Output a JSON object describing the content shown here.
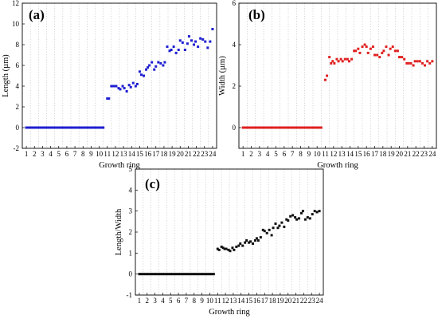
{
  "chart_data": [
    {
      "panel": "(a)",
      "type": "scatter",
      "xlabel": "Growth ring",
      "ylabel": "Length (µm)",
      "xlim": [
        0.5,
        24.5
      ],
      "ylim": [
        -2,
        12
      ],
      "xticks": [
        "1",
        "2",
        "3",
        "4",
        "5",
        "6",
        "7",
        "8",
        "9",
        "10",
        "11",
        "12",
        "13",
        "14",
        "15",
        "16",
        "17",
        "18",
        "19",
        "20",
        "21",
        "22",
        "23",
        "24"
      ],
      "yticks": [
        "-2",
        "0",
        "2",
        "4",
        "6",
        "8",
        "10",
        "12"
      ],
      "grid": "vertical dotted",
      "color": "#1f1fd1",
      "x": [
        1.0,
        1.25,
        1.5,
        1.75,
        2.0,
        2.25,
        2.5,
        2.75,
        3.0,
        3.25,
        3.5,
        3.75,
        4.0,
        4.25,
        4.5,
        4.75,
        5.0,
        5.25,
        5.5,
        5.75,
        6.0,
        6.25,
        6.5,
        6.75,
        7.0,
        7.25,
        7.5,
        7.75,
        8.0,
        8.25,
        8.5,
        8.75,
        9.0,
        9.25,
        9.5,
        9.75,
        10.0,
        10.25,
        10.5,
        11.0,
        11.2,
        11.5,
        11.7,
        11.9,
        12.1,
        12.4,
        12.6,
        12.9,
        13.1,
        13.4,
        13.7,
        13.9,
        14.2,
        14.5,
        14.7,
        15.0,
        15.2,
        15.5,
        15.8,
        16.0,
        16.2,
        16.5,
        16.8,
        17.0,
        17.3,
        17.6,
        17.9,
        18.1,
        18.4,
        18.7,
        18.9,
        19.2,
        19.5,
        19.8,
        20.0,
        20.3,
        20.6,
        20.9,
        21.1,
        21.4,
        21.7,
        21.9,
        22.2,
        22.5,
        22.8,
        23.1,
        23.4,
        23.7,
        24.0
      ],
      "y": [
        0,
        0,
        0,
        0,
        0,
        0,
        0,
        0,
        0,
        0,
        0,
        0,
        0,
        0,
        0,
        0,
        0,
        0,
        0,
        0,
        0,
        0,
        0,
        0,
        0,
        0,
        0,
        0,
        0,
        0,
        0,
        0,
        0,
        0,
        0,
        0,
        0,
        0,
        0,
        2.8,
        2.8,
        4.0,
        4.0,
        4.0,
        4.0,
        3.8,
        3.7,
        4.0,
        3.8,
        3.5,
        4.1,
        3.9,
        4.3,
        4.0,
        4.2,
        5.4,
        5.1,
        5.0,
        5.6,
        5.8,
        6.0,
        6.3,
        5.6,
        5.9,
        6.3,
        6.2,
        6.0,
        6.3,
        7.8,
        7.4,
        7.5,
        7.8,
        7.2,
        7.5,
        8.4,
        8.2,
        7.5,
        8.1,
        8.8,
        8.4,
        8.0,
        8.3,
        7.8,
        8.6,
        8.5,
        8.3,
        7.7,
        8.3,
        9.5
      ]
    },
    {
      "panel": "(b)",
      "type": "scatter",
      "xlabel": "Growth ring",
      "ylabel": "Width (µm)",
      "xlim": [
        0.5,
        24.5
      ],
      "ylim": [
        -1,
        6
      ],
      "xticks": [
        "1",
        "2",
        "3",
        "4",
        "5",
        "6",
        "7",
        "8",
        "9",
        "10",
        "11",
        "12",
        "13",
        "14",
        "15",
        "16",
        "17",
        "18",
        "19",
        "20",
        "21",
        "22",
        "23",
        "24"
      ],
      "yticks": [
        "0",
        "2",
        "4",
        "6"
      ],
      "grid": "vertical dotted",
      "color": "#e02020",
      "x": [
        1.0,
        1.25,
        1.5,
        1.75,
        2.0,
        2.25,
        2.5,
        2.75,
        3.0,
        3.25,
        3.5,
        3.75,
        4.0,
        4.25,
        4.5,
        4.75,
        5.0,
        5.25,
        5.5,
        5.75,
        6.0,
        6.25,
        6.5,
        6.75,
        7.0,
        7.25,
        7.5,
        7.75,
        8.0,
        8.25,
        8.5,
        8.75,
        9.0,
        9.25,
        9.5,
        9.75,
        10.0,
        10.25,
        10.5,
        11.0,
        11.2,
        11.5,
        11.7,
        11.9,
        12.1,
        12.4,
        12.6,
        12.9,
        13.1,
        13.4,
        13.7,
        13.9,
        14.2,
        14.5,
        14.7,
        15.0,
        15.2,
        15.5,
        15.8,
        16.0,
        16.2,
        16.5,
        16.8,
        17.0,
        17.3,
        17.6,
        17.9,
        18.1,
        18.4,
        18.7,
        18.9,
        19.2,
        19.5,
        19.8,
        20.0,
        20.3,
        20.6,
        20.9,
        21.1,
        21.4,
        21.7,
        21.9,
        22.2,
        22.5,
        22.8,
        23.1,
        23.4,
        23.7,
        24.0
      ],
      "y": [
        0,
        0,
        0,
        0,
        0,
        0,
        0,
        0,
        0,
        0,
        0,
        0,
        0,
        0,
        0,
        0,
        0,
        0,
        0,
        0,
        0,
        0,
        0,
        0,
        0,
        0,
        0,
        0,
        0,
        0,
        0,
        0,
        0,
        0,
        0,
        0,
        0,
        0,
        0,
        2.3,
        2.5,
        3.4,
        3.1,
        3.2,
        3.1,
        3.3,
        3.2,
        3.3,
        3.2,
        3.3,
        3.3,
        3.2,
        3.3,
        3.7,
        3.7,
        3.8,
        3.6,
        3.9,
        4.0,
        3.9,
        3.6,
        3.8,
        3.9,
        3.5,
        3.5,
        3.4,
        3.6,
        3.7,
        3.9,
        3.5,
        3.8,
        3.9,
        3.7,
        3.7,
        3.4,
        3.4,
        3.3,
        3.1,
        3.1,
        3.1,
        3.0,
        3.2,
        3.2,
        3.2,
        3.1,
        3.0,
        3.2,
        3.1,
        3.2
      ]
    },
    {
      "panel": "(c)",
      "type": "scatter",
      "xlabel": "Growth ring",
      "ylabel": "Length/Width",
      "xlim": [
        0.5,
        24.5
      ],
      "ylim": [
        -1,
        5
      ],
      "xticks": [
        "1",
        "2",
        "3",
        "4",
        "5",
        "6",
        "7",
        "8",
        "9",
        "10",
        "11",
        "12",
        "13",
        "14",
        "15",
        "16",
        "17",
        "18",
        "19",
        "20",
        "21",
        "22",
        "23",
        "24"
      ],
      "yticks": [
        "-1",
        "0",
        "1",
        "2",
        "3",
        "4",
        "5"
      ],
      "grid": "vertical dotted",
      "color": "#111111",
      "x": [
        1.0,
        1.25,
        1.5,
        1.75,
        2.0,
        2.25,
        2.5,
        2.75,
        3.0,
        3.25,
        3.5,
        3.75,
        4.0,
        4.25,
        4.5,
        4.75,
        5.0,
        5.25,
        5.5,
        5.75,
        6.0,
        6.25,
        6.5,
        6.75,
        7.0,
        7.25,
        7.5,
        7.75,
        8.0,
        8.25,
        8.5,
        8.75,
        9.0,
        9.25,
        9.5,
        9.75,
        10.0,
        10.25,
        10.5,
        11.0,
        11.2,
        11.5,
        11.7,
        11.9,
        12.1,
        12.4,
        12.6,
        12.9,
        13.1,
        13.4,
        13.7,
        13.9,
        14.2,
        14.5,
        14.7,
        15.0,
        15.2,
        15.5,
        15.8,
        16.0,
        16.2,
        16.5,
        16.8,
        17.0,
        17.3,
        17.6,
        17.9,
        18.1,
        18.4,
        18.7,
        18.9,
        19.2,
        19.5,
        19.8,
        20.0,
        20.3,
        20.6,
        20.9,
        21.1,
        21.4,
        21.7,
        21.9,
        22.2,
        22.5,
        22.8,
        23.1,
        23.4,
        23.7,
        24.0
      ],
      "y": [
        0,
        0,
        0,
        0,
        0,
        0,
        0,
        0,
        0,
        0,
        0,
        0,
        0,
        0,
        0,
        0,
        0,
        0,
        0,
        0,
        0,
        0,
        0,
        0,
        0,
        0,
        0,
        0,
        0,
        0,
        0,
        0,
        0,
        0,
        0,
        0,
        0,
        0,
        0,
        1.2,
        1.15,
        1.3,
        1.25,
        1.2,
        1.2,
        1.15,
        1.1,
        1.25,
        1.15,
        1.3,
        1.35,
        1.45,
        1.35,
        1.5,
        1.6,
        1.5,
        1.55,
        1.45,
        1.6,
        1.7,
        1.6,
        1.75,
        2.1,
        2.05,
        1.95,
        2.1,
        1.85,
        2.2,
        2.4,
        2.2,
        2.3,
        2.45,
        2.25,
        2.6,
        2.55,
        2.75,
        2.8,
        2.7,
        2.6,
        2.65,
        2.9,
        3.0,
        2.6,
        2.7,
        2.65,
        2.85,
        3.0,
        2.95,
        3.0
      ]
    }
  ]
}
